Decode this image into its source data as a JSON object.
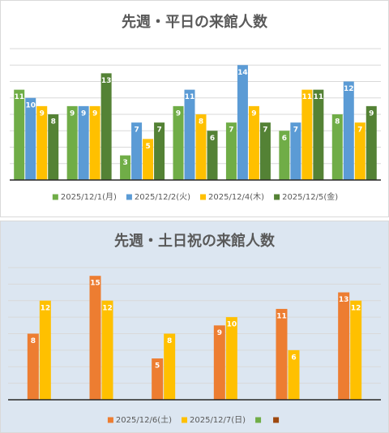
{
  "chart_data": [
    {
      "type": "bar",
      "title": "先週・平日の来館人数",
      "categories": [
        null,
        null,
        null,
        null,
        null,
        null,
        null
      ],
      "series": [
        {
          "name": "2025/12/1(月)",
          "color": "#70ad47",
          "values": [
            11,
            9,
            3,
            9,
            7,
            6,
            8
          ]
        },
        {
          "name": "2025/12/2(火)",
          "color": "#5b9bd5",
          "values": [
            10,
            9,
            7,
            11,
            14,
            7,
            12
          ]
        },
        {
          "name": "2025/12/4(木)",
          "color": "#ffc000",
          "values": [
            9,
            9,
            5,
            8,
            9,
            11,
            7
          ]
        },
        {
          "name": "2025/12/5(金)",
          "color": "#548235",
          "values": [
            8,
            13,
            7,
            6,
            7,
            11,
            9
          ]
        }
      ],
      "ylim": [
        0,
        16
      ],
      "yticks": [
        0,
        2,
        4,
        6,
        8,
        10,
        12,
        14,
        16
      ],
      "grid": true,
      "legend": "bottom",
      "background": "#ffffff"
    },
    {
      "type": "bar",
      "title": "先週・土日祝の来館人数",
      "categories": [
        null,
        null,
        null,
        null,
        null,
        null
      ],
      "series": [
        {
          "name": "2025/12/6(土)",
          "color": "#ed7d31",
          "values": [
            8,
            15,
            5,
            9,
            11,
            13
          ]
        },
        {
          "name": "2025/12/7(日)",
          "color": "#ffc000",
          "values": [
            12,
            12,
            8,
            10,
            6,
            12
          ]
        },
        {
          "name": null,
          "color": "#70ad47",
          "values": [
            null,
            null,
            null,
            null,
            null,
            null
          ]
        },
        {
          "name": null,
          "color": "#9e480e",
          "values": [
            null,
            null,
            null,
            null,
            null,
            null
          ]
        }
      ],
      "ylim": [
        0,
        16
      ],
      "yticks": [
        0,
        2,
        4,
        6,
        8,
        10,
        12,
        14,
        16
      ],
      "grid": true,
      "legend": "bottom",
      "background": "#dce6f1"
    }
  ]
}
